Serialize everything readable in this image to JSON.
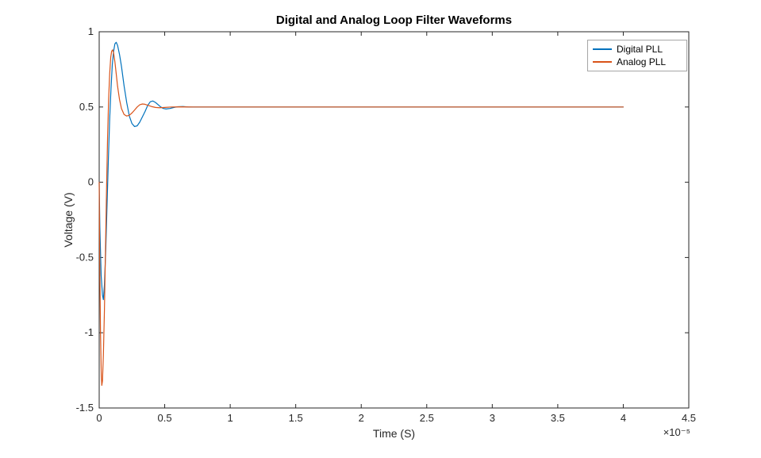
{
  "chart_data": {
    "type": "line",
    "title": "Digital and Analog Loop Filter Waveforms",
    "xlabel": "Time (S)",
    "ylabel": "Voltage (V)",
    "x_axis_exponent_label": "×10⁻⁵",
    "xlim": [
      0,
      4.5
    ],
    "ylim": [
      -1.5,
      1
    ],
    "xticks": [
      0,
      0.5,
      1,
      1.5,
      2,
      2.5,
      3,
      3.5,
      4,
      4.5
    ],
    "xtick_labels": [
      "0",
      "0.5",
      "1",
      "1.5",
      "2",
      "2.5",
      "3",
      "3.5",
      "4",
      "4.5"
    ],
    "yticks": [
      -1.5,
      -1,
      -0.5,
      0,
      0.5,
      1
    ],
    "ytick_labels": [
      "-1.5",
      "-1",
      "-0.5",
      "0",
      "0.5",
      "1"
    ],
    "grid": false,
    "axis_color": "#262626",
    "tick_label_color": "#262626",
    "background_color": "#ffffff",
    "legend": {
      "position": "northeast",
      "border_color": "#a6a6a6",
      "entries": [
        "Digital PLL",
        "Analog PLL"
      ]
    },
    "series": [
      {
        "name": "Digital PLL",
        "color": "#0072BD",
        "points": [
          [
            0,
            0
          ],
          [
            0.005,
            -0.3
          ],
          [
            0.015,
            -0.62
          ],
          [
            0.025,
            -0.75
          ],
          [
            0.032,
            -0.78
          ],
          [
            0.04,
            -0.68
          ],
          [
            0.05,
            -0.45
          ],
          [
            0.06,
            -0.15
          ],
          [
            0.07,
            0.15
          ],
          [
            0.08,
            0.42
          ],
          [
            0.09,
            0.62
          ],
          [
            0.1,
            0.78
          ],
          [
            0.11,
            0.87
          ],
          [
            0.12,
            0.92
          ],
          [
            0.13,
            0.93
          ],
          [
            0.14,
            0.91
          ],
          [
            0.155,
            0.85
          ],
          [
            0.17,
            0.77
          ],
          [
            0.19,
            0.64
          ],
          [
            0.21,
            0.53
          ],
          [
            0.23,
            0.44
          ],
          [
            0.25,
            0.39
          ],
          [
            0.27,
            0.37
          ],
          [
            0.29,
            0.375
          ],
          [
            0.31,
            0.4
          ],
          [
            0.33,
            0.435
          ],
          [
            0.35,
            0.47
          ],
          [
            0.37,
            0.51
          ],
          [
            0.39,
            0.535
          ],
          [
            0.41,
            0.54
          ],
          [
            0.43,
            0.53
          ],
          [
            0.45,
            0.515
          ],
          [
            0.47,
            0.5
          ],
          [
            0.49,
            0.49
          ],
          [
            0.51,
            0.487
          ],
          [
            0.54,
            0.49
          ],
          [
            0.57,
            0.497
          ],
          [
            0.6,
            0.502
          ],
          [
            0.64,
            0.503
          ],
          [
            0.68,
            0.5
          ],
          [
            0.75,
            0.5
          ],
          [
            0.9,
            0.5
          ],
          [
            1.2,
            0.5
          ],
          [
            1.6,
            0.5
          ],
          [
            2,
            0.5
          ],
          [
            2.5,
            0.5
          ],
          [
            3,
            0.5
          ],
          [
            3.5,
            0.5
          ],
          [
            4,
            0.5
          ]
        ]
      },
      {
        "name": "Analog PLL",
        "color": "#D95319",
        "points": [
          [
            0,
            0
          ],
          [
            0.004,
            -0.5
          ],
          [
            0.01,
            -1.0
          ],
          [
            0.016,
            -1.28
          ],
          [
            0.02,
            -1.35
          ],
          [
            0.025,
            -1.32
          ],
          [
            0.032,
            -1.15
          ],
          [
            0.04,
            -0.85
          ],
          [
            0.048,
            -0.45
          ],
          [
            0.056,
            -0.05
          ],
          [
            0.064,
            0.3
          ],
          [
            0.072,
            0.55
          ],
          [
            0.08,
            0.72
          ],
          [
            0.088,
            0.83
          ],
          [
            0.095,
            0.87
          ],
          [
            0.103,
            0.88
          ],
          [
            0.11,
            0.86
          ],
          [
            0.12,
            0.8
          ],
          [
            0.13,
            0.72
          ],
          [
            0.14,
            0.64
          ],
          [
            0.155,
            0.55
          ],
          [
            0.17,
            0.49
          ],
          [
            0.19,
            0.45
          ],
          [
            0.21,
            0.44
          ],
          [
            0.23,
            0.445
          ],
          [
            0.25,
            0.46
          ],
          [
            0.27,
            0.48
          ],
          [
            0.29,
            0.5
          ],
          [
            0.31,
            0.515
          ],
          [
            0.33,
            0.52
          ],
          [
            0.35,
            0.518
          ],
          [
            0.37,
            0.512
          ],
          [
            0.4,
            0.503
          ],
          [
            0.43,
            0.497
          ],
          [
            0.46,
            0.495
          ],
          [
            0.5,
            0.497
          ],
          [
            0.55,
            0.5
          ],
          [
            0.62,
            0.501
          ],
          [
            0.72,
            0.5
          ],
          [
            0.9,
            0.5
          ],
          [
            1.2,
            0.5
          ],
          [
            1.6,
            0.5
          ],
          [
            2,
            0.5
          ],
          [
            2.5,
            0.5
          ],
          [
            3,
            0.5
          ],
          [
            3.5,
            0.5
          ],
          [
            4,
            0.5
          ]
        ]
      }
    ]
  }
}
